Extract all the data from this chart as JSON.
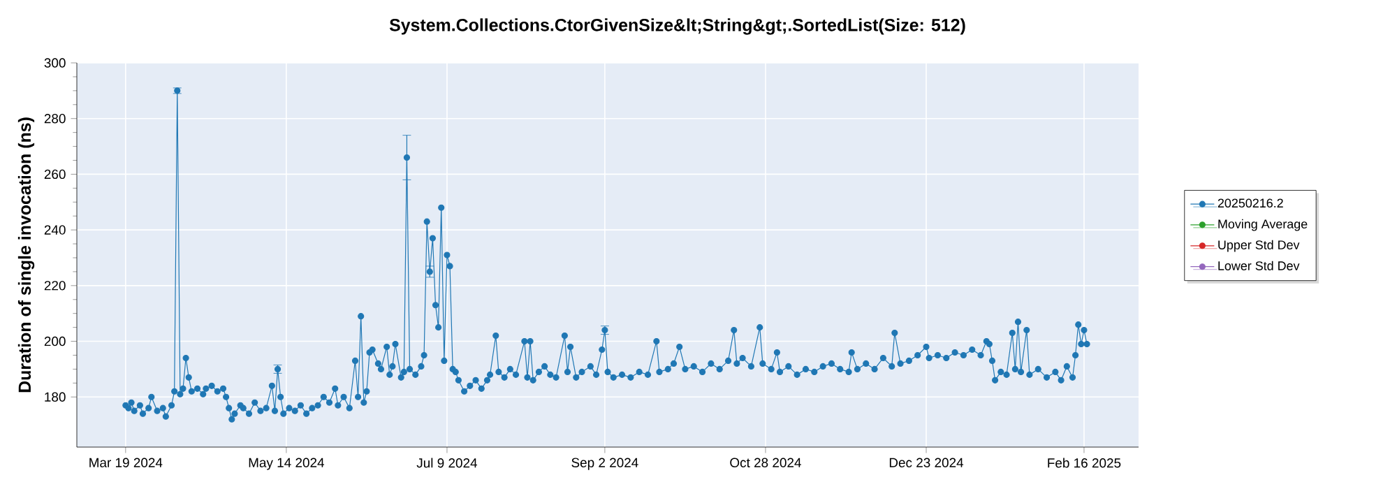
{
  "chart_data": {
    "type": "line",
    "title": "System.Collections.CtorGivenSize&lt;String&gt;.SortedList(Size: 512)",
    "ylabel": "Duration of single invocation (ns)",
    "xlim": [
      "2024-03-02",
      "2025-03-07"
    ],
    "ylim": [
      162,
      300
    ],
    "xticks": [
      {
        "value": "2024-03-19",
        "label": "Mar 19 2024"
      },
      {
        "value": "2024-05-14",
        "label": "May 14 2024"
      },
      {
        "value": "2024-07-09",
        "label": "Jul 9 2024"
      },
      {
        "value": "2024-09-02",
        "label": "Sep 2 2024"
      },
      {
        "value": "2024-10-28",
        "label": "Oct 28 2024"
      },
      {
        "value": "2024-12-23",
        "label": "Dec 23 2024"
      },
      {
        "value": "2025-02-16",
        "label": "Feb 16 2025"
      }
    ],
    "yticks": [
      180,
      200,
      220,
      240,
      260,
      280,
      300
    ],
    "grid": true,
    "legend": "right",
    "marker": "circle",
    "line_style": "solid",
    "series": [
      {
        "name": "20250216.2",
        "color": "#1f77b4",
        "x": [
          "2024-03-19",
          "2024-03-20",
          "2024-03-21",
          "2024-03-22",
          "2024-03-24",
          "2024-03-25",
          "2024-03-27",
          "2024-03-28",
          "2024-03-30",
          "2024-04-01",
          "2024-04-02",
          "2024-04-04",
          "2024-04-05",
          "2024-04-06",
          "2024-04-07",
          "2024-04-08",
          "2024-04-09",
          "2024-04-10",
          "2024-04-11",
          "2024-04-13",
          "2024-04-15",
          "2024-04-16",
          "2024-04-18",
          "2024-04-20",
          "2024-04-22",
          "2024-04-23",
          "2024-04-24",
          "2024-04-25",
          "2024-04-26",
          "2024-04-28",
          "2024-04-29",
          "2024-05-01",
          "2024-05-03",
          "2024-05-05",
          "2024-05-07",
          "2024-05-09",
          "2024-05-10",
          "2024-05-11",
          "2024-05-12",
          "2024-05-13",
          "2024-05-15",
          "2024-05-17",
          "2024-05-19",
          "2024-05-21",
          "2024-05-23",
          "2024-05-25",
          "2024-05-27",
          "2024-05-29",
          "2024-05-31",
          "2024-06-01",
          "2024-06-03",
          "2024-06-05",
          "2024-06-07",
          "2024-06-08",
          "2024-06-09",
          "2024-06-10",
          "2024-06-11",
          "2024-06-12",
          "2024-06-13",
          "2024-06-15",
          "2024-06-16",
          "2024-06-18",
          "2024-06-19",
          "2024-06-20",
          "2024-06-21",
          "2024-06-23",
          "2024-06-24",
          "2024-06-25",
          "2024-06-26",
          "2024-06-28",
          "2024-06-30",
          "2024-07-01",
          "2024-07-02",
          "2024-07-03",
          "2024-07-04",
          "2024-07-05",
          "2024-07-06",
          "2024-07-07",
          "2024-07-08",
          "2024-07-09",
          "2024-07-10",
          "2024-07-11",
          "2024-07-12",
          "2024-07-13",
          "2024-07-15",
          "2024-07-17",
          "2024-07-19",
          "2024-07-21",
          "2024-07-23",
          "2024-07-24",
          "2024-07-26",
          "2024-07-27",
          "2024-07-29",
          "2024-07-31",
          "2024-08-02",
          "2024-08-05",
          "2024-08-06",
          "2024-08-07",
          "2024-08-08",
          "2024-08-10",
          "2024-08-12",
          "2024-08-14",
          "2024-08-16",
          "2024-08-19",
          "2024-08-20",
          "2024-08-21",
          "2024-08-23",
          "2024-08-25",
          "2024-08-28",
          "2024-08-30",
          "2024-09-01",
          "2024-09-02",
          "2024-09-03",
          "2024-09-05",
          "2024-09-08",
          "2024-09-11",
          "2024-09-14",
          "2024-09-17",
          "2024-09-20",
          "2024-09-21",
          "2024-09-24",
          "2024-09-26",
          "2024-09-28",
          "2024-09-30",
          "2024-10-03",
          "2024-10-06",
          "2024-10-09",
          "2024-10-12",
          "2024-10-15",
          "2024-10-17",
          "2024-10-18",
          "2024-10-20",
          "2024-10-23",
          "2024-10-26",
          "2024-10-27",
          "2024-10-30",
          "2024-11-01",
          "2024-11-02",
          "2024-11-05",
          "2024-11-08",
          "2024-11-11",
          "2024-11-14",
          "2024-11-17",
          "2024-11-20",
          "2024-11-23",
          "2024-11-26",
          "2024-11-27",
          "2024-11-29",
          "2024-12-02",
          "2024-12-05",
          "2024-12-08",
          "2024-12-11",
          "2024-12-12",
          "2024-12-14",
          "2024-12-17",
          "2024-12-20",
          "2024-12-23",
          "2024-12-24",
          "2024-12-27",
          "2024-12-30",
          "2025-01-02",
          "2025-01-05",
          "2025-01-08",
          "2025-01-11",
          "2025-01-13",
          "2025-01-14",
          "2025-01-15",
          "2025-01-16",
          "2025-01-18",
          "2025-01-20",
          "2025-01-22",
          "2025-01-23",
          "2025-01-24",
          "2025-01-25",
          "2025-01-27",
          "2025-01-28",
          "2025-01-31",
          "2025-02-03",
          "2025-02-06",
          "2025-02-08",
          "2025-02-10",
          "2025-02-12",
          "2025-02-13",
          "2025-02-14",
          "2025-02-15",
          "2025-02-16",
          "2025-02-17"
        ],
        "values": [
          177,
          176,
          178,
          175,
          177,
          174,
          176,
          180,
          175,
          176,
          173,
          177,
          182,
          290,
          181,
          183,
          194,
          187,
          182,
          183,
          181,
          183,
          184,
          182,
          183,
          180,
          176,
          172,
          174,
          177,
          176,
          174,
          178,
          175,
          176,
          184,
          175,
          190,
          180,
          174,
          176,
          175,
          177,
          174,
          176,
          177,
          180,
          178,
          183,
          177,
          180,
          176,
          193,
          180,
          209,
          178,
          182,
          196,
          197,
          192,
          190,
          198,
          188,
          191,
          199,
          187,
          189,
          266,
          190,
          188,
          191,
          195,
          243,
          225,
          237,
          213,
          205,
          248,
          193,
          231,
          227,
          190,
          189,
          186,
          182,
          184,
          186,
          183,
          186,
          188,
          202,
          189,
          187,
          190,
          188,
          200,
          187,
          200,
          186,
          189,
          191,
          188,
          187,
          202,
          189,
          198,
          187,
          189,
          191,
          188,
          197,
          204,
          189,
          187,
          188,
          187,
          189,
          188,
          200,
          189,
          190,
          192,
          198,
          190,
          191,
          189,
          192,
          190,
          193,
          204,
          192,
          194,
          191,
          205,
          192,
          190,
          196,
          189,
          191,
          188,
          190,
          189,
          191,
          192,
          190,
          189,
          196,
          190,
          192,
          190,
          194,
          191,
          203,
          192,
          193,
          195,
          198,
          194,
          195,
          194,
          196,
          195,
          197,
          195,
          200,
          199,
          193,
          186,
          189,
          188,
          203,
          190,
          207,
          189,
          204,
          188,
          190,
          187,
          189,
          186,
          191,
          187,
          195,
          206,
          199,
          204,
          199
        ],
        "errors": [
          null,
          null,
          null,
          null,
          null,
          null,
          null,
          null,
          null,
          null,
          null,
          null,
          null,
          1,
          null,
          null,
          null,
          null,
          null,
          null,
          null,
          null,
          null,
          null,
          null,
          null,
          null,
          null,
          null,
          null,
          null,
          null,
          null,
          null,
          null,
          null,
          null,
          1.5,
          null,
          null,
          null,
          null,
          null,
          null,
          null,
          null,
          null,
          null,
          null,
          null,
          null,
          null,
          null,
          null,
          null,
          null,
          null,
          null,
          null,
          null,
          null,
          null,
          null,
          null,
          null,
          null,
          null,
          [
            258,
            274
          ],
          null,
          null,
          null,
          null,
          null,
          2,
          null,
          null,
          null,
          null,
          null,
          null,
          null,
          null,
          null,
          null,
          null,
          null,
          null,
          null,
          null,
          null,
          null,
          null,
          null,
          null,
          null,
          null,
          null,
          null,
          null,
          null,
          null,
          null,
          null,
          null,
          null,
          null,
          null,
          null,
          null,
          null,
          null,
          1.5,
          null,
          null,
          null,
          null,
          null,
          null,
          null,
          null,
          null,
          null,
          null,
          null,
          null,
          null,
          null,
          null,
          null,
          null,
          null,
          null,
          null,
          null,
          null,
          null,
          null,
          null,
          null,
          null,
          null,
          null,
          null,
          null,
          null,
          null,
          null,
          null,
          null,
          null,
          null,
          null,
          null,
          null,
          null,
          null,
          null,
          null,
          null,
          null,
          null,
          null,
          null,
          null,
          null,
          null,
          null,
          null,
          null,
          null,
          null,
          null,
          null,
          null,
          null,
          null,
          null,
          null,
          null,
          null,
          null,
          null,
          null,
          null,
          null,
          null,
          null
        ]
      },
      {
        "name": "Moving Average",
        "color": "#2ca02c"
      },
      {
        "name": "Upper Std Dev",
        "color": "#d62728"
      },
      {
        "name": "Lower Std Dev",
        "color": "#9467bd"
      }
    ]
  }
}
